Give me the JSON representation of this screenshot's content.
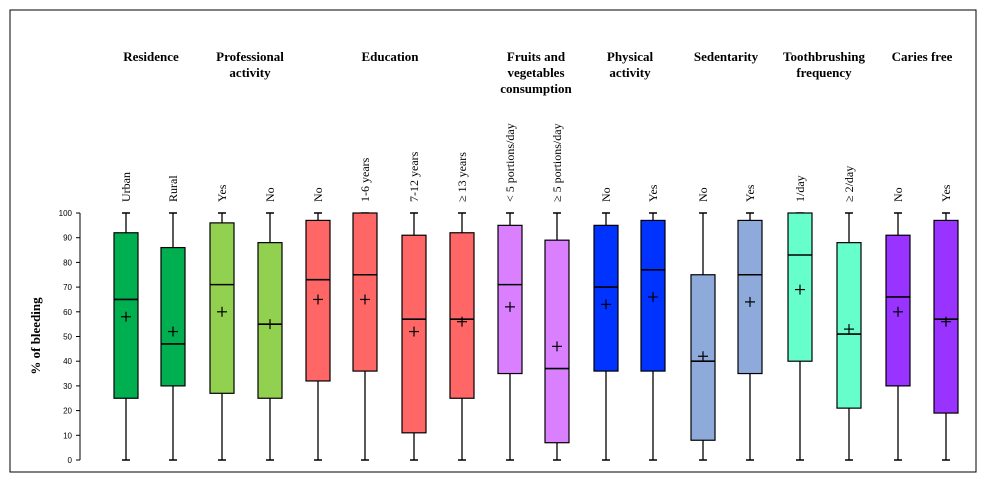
{
  "chart_data": {
    "type": "boxplot",
    "ylabel": "% of bleeding",
    "ylim": [
      0,
      100
    ],
    "yticks": [
      0,
      10,
      20,
      30,
      40,
      50,
      60,
      70,
      80,
      90,
      100
    ],
    "groups": [
      {
        "title_lines": [
          "Residence"
        ]
      },
      {
        "title_lines": [
          "Professional",
          "activity"
        ]
      },
      {
        "title_lines": [
          "Education"
        ]
      },
      {
        "title_lines": [
          "Fruits and",
          "vegetables",
          "consumption"
        ]
      },
      {
        "title_lines": [
          "Physical",
          "activity"
        ]
      },
      {
        "title_lines": [
          "Sedentarity"
        ]
      },
      {
        "title_lines": [
          "Toothbrushing",
          "frequency"
        ]
      },
      {
        "title_lines": [
          "Caries free"
        ]
      }
    ],
    "boxes": [
      {
        "group": 0,
        "label": "Urban",
        "color": "#00b050",
        "min": 0,
        "q1": 25,
        "median": 65,
        "q3": 92,
        "max": 100,
        "mean": 58
      },
      {
        "group": 0,
        "label": "Rural",
        "color": "#00b050",
        "min": 0,
        "q1": 30,
        "median": 47,
        "q3": 86,
        "max": 100,
        "mean": 52
      },
      {
        "group": 1,
        "label": "Yes",
        "color": "#92d050",
        "min": 0,
        "q1": 27,
        "median": 71,
        "q3": 96,
        "max": 100,
        "mean": 60
      },
      {
        "group": 1,
        "label": "No",
        "color": "#92d050",
        "min": 0,
        "q1": 25,
        "median": 55,
        "q3": 88,
        "max": 100,
        "mean": 55
      },
      {
        "group": 2,
        "label": "No",
        "color": "#ff6666",
        "min": 0,
        "q1": 32,
        "median": 73,
        "q3": 97,
        "max": 100,
        "mean": 65
      },
      {
        "group": 2,
        "label": "1-6 years",
        "color": "#ff6666",
        "min": 0,
        "q1": 36,
        "median": 75,
        "q3": 100,
        "max": 100,
        "mean": 65
      },
      {
        "group": 2,
        "label": "7-12 years",
        "color": "#ff6666",
        "min": 0,
        "q1": 11,
        "median": 57,
        "q3": 91,
        "max": 100,
        "mean": 52
      },
      {
        "group": 2,
        "label": "≥ 13 years",
        "color": "#ff6666",
        "min": 0,
        "q1": 25,
        "median": 57,
        "q3": 92,
        "max": 100,
        "mean": 56
      },
      {
        "group": 3,
        "label": "< 5 portions/day",
        "color": "#da80ff",
        "min": 0,
        "q1": 35,
        "median": 71,
        "q3": 95,
        "max": 100,
        "mean": 62
      },
      {
        "group": 3,
        "label": "≥ 5 portions/day",
        "color": "#da80ff",
        "min": 0,
        "q1": 7,
        "median": 37,
        "q3": 89,
        "max": 100,
        "mean": 46
      },
      {
        "group": 4,
        "label": "No",
        "color": "#0033ff",
        "min": 0,
        "q1": 36,
        "median": 70,
        "q3": 95,
        "max": 100,
        "mean": 63
      },
      {
        "group": 4,
        "label": "Yes",
        "color": "#0033ff",
        "min": 0,
        "q1": 36,
        "median": 77,
        "q3": 97,
        "max": 100,
        "mean": 66
      },
      {
        "group": 5,
        "label": "No",
        "color": "#8eaadb",
        "min": 0,
        "q1": 8,
        "median": 40,
        "q3": 75,
        "max": 100,
        "mean": 42
      },
      {
        "group": 5,
        "label": "Yes",
        "color": "#8eaadb",
        "min": 0,
        "q1": 35,
        "median": 75,
        "q3": 97,
        "max": 100,
        "mean": 64
      },
      {
        "group": 6,
        "label": "1/day",
        "color": "#66ffcc",
        "min": 0,
        "q1": 40,
        "median": 83,
        "q3": 100,
        "max": 100,
        "mean": 69
      },
      {
        "group": 6,
        "label": "≥ 2/day",
        "color": "#66ffcc",
        "min": 0,
        "q1": 21,
        "median": 51,
        "q3": 88,
        "max": 100,
        "mean": 53
      },
      {
        "group": 7,
        "label": "No",
        "color": "#9933ff",
        "min": 0,
        "q1": 30,
        "median": 66,
        "q3": 91,
        "max": 100,
        "mean": 60
      },
      {
        "group": 7,
        "label": "Yes",
        "color": "#9933ff",
        "min": 0,
        "q1": 19,
        "median": 57,
        "q3": 97,
        "max": 100,
        "mean": 56
      }
    ]
  }
}
